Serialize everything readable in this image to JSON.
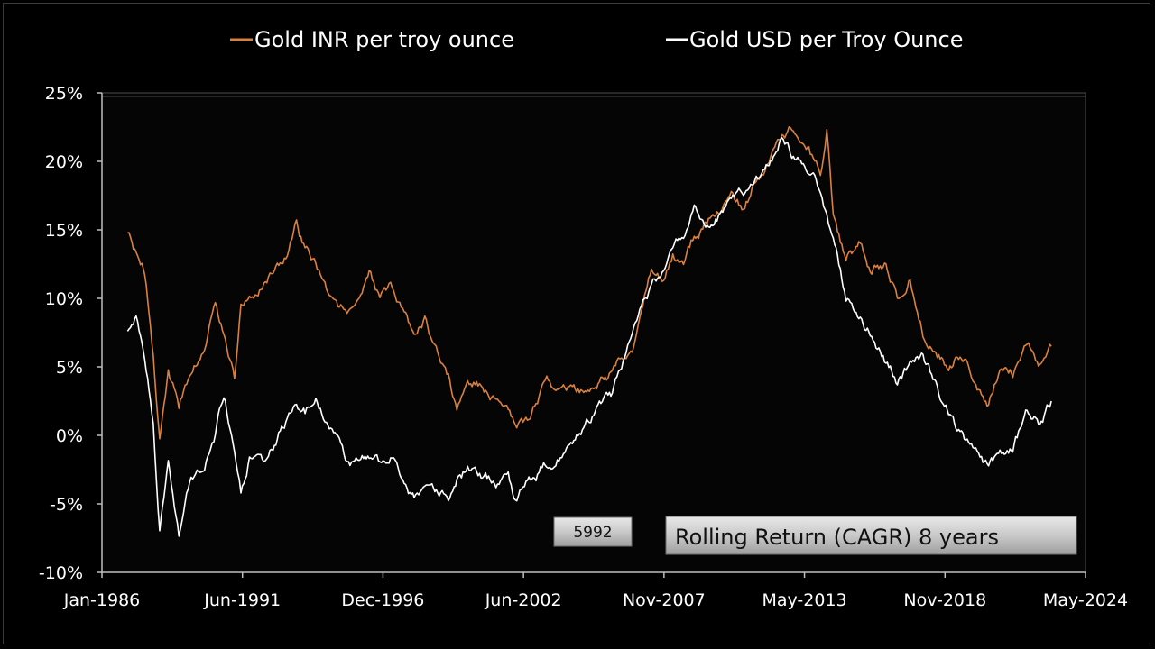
{
  "chart_data": {
    "type": "line",
    "title": "",
    "xlabel": "",
    "ylabel": "",
    "ylim": [
      -10,
      25
    ],
    "y_ticks": [
      "25%",
      "20%",
      "15%",
      "10%",
      "5%",
      "0%",
      "-5%",
      "-10%"
    ],
    "x_ticks": [
      "Jan-1986",
      "Jun-1991",
      "Dec-1996",
      "Jun-2002",
      "Nov-2007",
      "May-2013",
      "Nov-2018",
      "May-2024"
    ],
    "x_range": [
      "1986-01",
      "2024-05"
    ],
    "grid": false,
    "legend_position": "top",
    "colors": {
      "inr": "#d9813e",
      "usd": "#ffffff",
      "background": "#000000"
    },
    "series": [
      {
        "name": "Gold INR per troy ounce",
        "color": "#d9813e",
        "points": [
          [
            "1987-01",
            14.5
          ],
          [
            "1987-05",
            13.2
          ],
          [
            "1987-09",
            12.0
          ],
          [
            "1988-01",
            6.0
          ],
          [
            "1988-04",
            0.2
          ],
          [
            "1988-08",
            4.5
          ],
          [
            "1989-01",
            2.0
          ],
          [
            "1989-06",
            4.5
          ],
          [
            "1990-01",
            6.5
          ],
          [
            "1990-06",
            10.0
          ],
          [
            "1990-10",
            7.5
          ],
          [
            "1991-03",
            4.2
          ],
          [
            "1991-06",
            9.5
          ],
          [
            "1991-10",
            10.5
          ],
          [
            "1992-04",
            11.0
          ],
          [
            "1992-09",
            12.0
          ],
          [
            "1993-03",
            13.0
          ],
          [
            "1993-08",
            15.8
          ],
          [
            "1993-12",
            13.5
          ],
          [
            "1994-05",
            12.8
          ],
          [
            "1994-10",
            11.0
          ],
          [
            "1995-04",
            9.5
          ],
          [
            "1995-09",
            9.0
          ],
          [
            "1996-02",
            10.2
          ],
          [
            "1996-06",
            11.5
          ],
          [
            "1996-11",
            9.8
          ],
          [
            "1997-04",
            10.5
          ],
          [
            "1997-09",
            9.0
          ],
          [
            "1998-03",
            7.0
          ],
          [
            "1998-08",
            8.5
          ],
          [
            "1999-02",
            6.0
          ],
          [
            "1999-07",
            4.5
          ],
          [
            "1999-11",
            2.0
          ],
          [
            "2000-04",
            4.5
          ],
          [
            "2000-11",
            3.5
          ],
          [
            "2001-06",
            2.5
          ],
          [
            "2001-11",
            2.0
          ],
          [
            "2002-03",
            0.3
          ],
          [
            "2002-08",
            1.0
          ],
          [
            "2002-12",
            2.5
          ],
          [
            "2003-05",
            4.0
          ],
          [
            "2003-10",
            3.0
          ],
          [
            "2004-05",
            3.5
          ],
          [
            "2004-11",
            3.0
          ],
          [
            "2005-05",
            4.0
          ],
          [
            "2005-11",
            4.5
          ],
          [
            "2006-04",
            6.0
          ],
          [
            "2006-09",
            6.5
          ],
          [
            "2007-02",
            10.0
          ],
          [
            "2007-06",
            12.0
          ],
          [
            "2007-11",
            11.0
          ],
          [
            "2008-04",
            13.0
          ],
          [
            "2008-09",
            12.5
          ],
          [
            "2009-02",
            14.5
          ],
          [
            "2009-08",
            15.5
          ],
          [
            "2010-02",
            16.5
          ],
          [
            "2010-08",
            17.5
          ],
          [
            "2011-01",
            16.5
          ],
          [
            "2011-07",
            18.5
          ],
          [
            "2012-01",
            20.0
          ],
          [
            "2012-07",
            22.0
          ],
          [
            "2013-01",
            22.5
          ],
          [
            "2013-07",
            21.0
          ],
          [
            "2014-01",
            19.0
          ],
          [
            "2014-04",
            22.5
          ],
          [
            "2014-07",
            16.0
          ],
          [
            "2015-01",
            13.0
          ],
          [
            "2015-07",
            14.0
          ],
          [
            "2016-01",
            12.0
          ],
          [
            "2016-07",
            12.5
          ],
          [
            "2017-01",
            10.0
          ],
          [
            "2017-07",
            11.5
          ],
          [
            "2018-01",
            7.5
          ],
          [
            "2018-07",
            6.5
          ],
          [
            "2019-01",
            5.0
          ],
          [
            "2019-07",
            6.0
          ],
          [
            "2020-01",
            4.5
          ],
          [
            "2020-07",
            2.0
          ],
          [
            "2021-01",
            5.0
          ],
          [
            "2021-07",
            4.5
          ],
          [
            "2022-01",
            7.0
          ],
          [
            "2022-07",
            5.5
          ],
          [
            "2023-01",
            6.5
          ]
        ]
      },
      {
        "name": "Gold USD per Troy Ounce",
        "color": "#ffffff",
        "points": [
          [
            "1987-01",
            7.5
          ],
          [
            "1987-05",
            8.5
          ],
          [
            "1987-09",
            6.0
          ],
          [
            "1988-01",
            1.0
          ],
          [
            "1988-04",
            -6.5
          ],
          [
            "1988-08",
            -2.0
          ],
          [
            "1989-01",
            -7.0
          ],
          [
            "1989-06",
            -3.5
          ],
          [
            "1990-01",
            -2.0
          ],
          [
            "1990-06",
            0.0
          ],
          [
            "1990-10",
            3.0
          ],
          [
            "1991-03",
            -1.0
          ],
          [
            "1991-06",
            -4.0
          ],
          [
            "1991-10",
            -1.5
          ],
          [
            "1992-04",
            -2.0
          ],
          [
            "1992-09",
            -1.0
          ],
          [
            "1993-03",
            1.0
          ],
          [
            "1993-08",
            2.8
          ],
          [
            "1993-12",
            2.0
          ],
          [
            "1994-05",
            2.5
          ],
          [
            "1994-10",
            1.0
          ],
          [
            "1995-04",
            -1.0
          ],
          [
            "1995-09",
            -2.5
          ],
          [
            "1996-02",
            -1.5
          ],
          [
            "1996-06",
            -1.5
          ],
          [
            "1996-11",
            -2.0
          ],
          [
            "1997-04",
            -1.5
          ],
          [
            "1997-09",
            -3.0
          ],
          [
            "1998-03",
            -4.5
          ],
          [
            "1998-08",
            -3.5
          ],
          [
            "1999-02",
            -4.0
          ],
          [
            "1999-07",
            -4.5
          ],
          [
            "1999-11",
            -3.0
          ],
          [
            "2000-04",
            -2.5
          ],
          [
            "2000-11",
            -3.0
          ],
          [
            "2001-06",
            -3.5
          ],
          [
            "2001-11",
            -3.0
          ],
          [
            "2002-03",
            -5.0
          ],
          [
            "2002-08",
            -3.5
          ],
          [
            "2002-12",
            -3.0
          ],
          [
            "2003-05",
            -2.0
          ],
          [
            "2003-10",
            -1.5
          ],
          [
            "2004-05",
            -0.5
          ],
          [
            "2004-11",
            0.5
          ],
          [
            "2005-05",
            2.0
          ],
          [
            "2005-11",
            2.5
          ],
          [
            "2006-04",
            5.0
          ],
          [
            "2006-09",
            7.0
          ],
          [
            "2007-02",
            9.0
          ],
          [
            "2007-06",
            10.5
          ],
          [
            "2007-11",
            12.0
          ],
          [
            "2008-04",
            13.5
          ],
          [
            "2008-09",
            14.5
          ],
          [
            "2009-02",
            16.5
          ],
          [
            "2009-08",
            15.5
          ],
          [
            "2010-02",
            16.0
          ],
          [
            "2010-08",
            17.5
          ],
          [
            "2011-01",
            18.0
          ],
          [
            "2011-07",
            18.5
          ],
          [
            "2012-01",
            19.5
          ],
          [
            "2012-07",
            21.5
          ],
          [
            "2013-01",
            20.0
          ],
          [
            "2013-07",
            19.5
          ],
          [
            "2014-01",
            18.0
          ],
          [
            "2014-04",
            16.0
          ],
          [
            "2014-07",
            14.0
          ],
          [
            "2015-01",
            10.0
          ],
          [
            "2015-07",
            9.0
          ],
          [
            "2016-01",
            7.5
          ],
          [
            "2016-07",
            5.5
          ],
          [
            "2017-01",
            4.0
          ],
          [
            "2017-07",
            5.0
          ],
          [
            "2018-01",
            5.5
          ],
          [
            "2018-07",
            3.5
          ],
          [
            "2019-01",
            1.5
          ],
          [
            "2019-07",
            0.0
          ],
          [
            "2020-01",
            -1.5
          ],
          [
            "2020-07",
            -2.5
          ],
          [
            "2021-01",
            -1.5
          ],
          [
            "2021-07",
            -1.0
          ],
          [
            "2022-01",
            1.5
          ],
          [
            "2022-07",
            1.0
          ],
          [
            "2023-01",
            2.5
          ]
        ]
      }
    ]
  },
  "overlay": {
    "count_box": "5992",
    "caption_box": "Rolling Return (CAGR) 8 years"
  }
}
